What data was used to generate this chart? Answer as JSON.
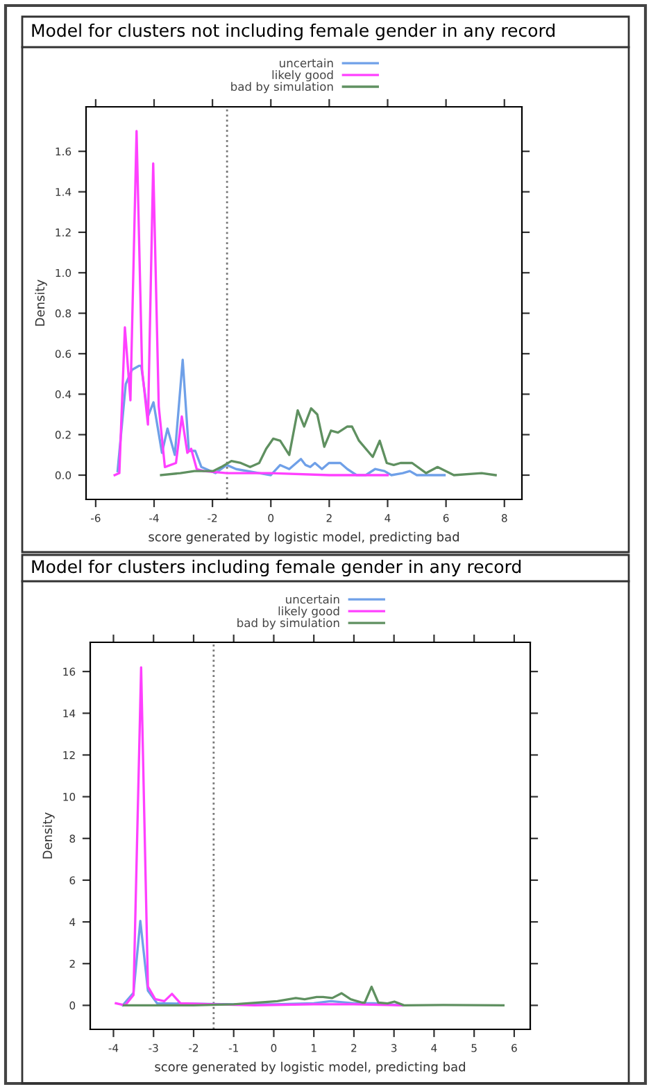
{
  "chart_data": [
    {
      "type": "line",
      "title": "Model for clusters not including female gender in any record",
      "xlabel": "score generated by logistic model, predicting bad",
      "ylabel": "Density",
      "xlim": [
        -6.33,
        8.6
      ],
      "ylim": [
        -0.12,
        1.82
      ],
      "xticks": [
        -6,
        -4,
        -2,
        0,
        2,
        4,
        6,
        8
      ],
      "yticks": [
        {
          "value": 0,
          "label": "0.0"
        },
        0.2,
        0.4,
        0.6,
        0.8,
        {
          "value": 1,
          "label": "1.0"
        },
        1.2,
        1.4,
        1.6
      ],
      "legend": "top",
      "grid": false,
      "line_style": "solid",
      "ref_lines": [
        {
          "axis": "x",
          "value": -1.5,
          "label": null,
          "color": "#777777",
          "line_style": "dotted"
        }
      ],
      "series": [
        {
          "name": "uncertain",
          "color": "#6fa0e8",
          "x": [
            -5.25,
            -4.97,
            -4.76,
            -4.52,
            -4.44,
            -4.21,
            -4.02,
            -3.73,
            -3.54,
            -3.29,
            -3.02,
            -2.81,
            -2.59,
            -2.38,
            -1.9,
            -1.51,
            -1.19,
            -0.4,
            0,
            0.32,
            0.63,
            1.03,
            1.19,
            1.35,
            1.51,
            1.75,
            1.99,
            2.38,
            2.62,
            2.94,
            3.25,
            3.57,
            3.89,
            4.13,
            4.52,
            4.76,
            5.0,
            5.95
          ],
          "values": [
            0.02,
            0.45,
            0.52,
            0.54,
            0.54,
            0.29,
            0.36,
            0.11,
            0.23,
            0.1,
            0.57,
            0.12,
            0.12,
            0.04,
            0.01,
            0.05,
            0.03,
            0.01,
            0,
            0.05,
            0.03,
            0.08,
            0.05,
            0.04,
            0.06,
            0.03,
            0.06,
            0.06,
            0.03,
            0,
            0,
            0.03,
            0.02,
            0,
            0.01,
            0.02,
            0,
            0
          ]
        },
        {
          "name": "likely good",
          "color": "#ff40ff",
          "x": [
            -5.35,
            -5.19,
            -5.0,
            -4.81,
            -4.6,
            -4.41,
            -4.21,
            -4.03,
            -3.84,
            -3.63,
            -3.25,
            -3.05,
            -2.86,
            -2.73,
            -2.54,
            -2.3,
            -1.5,
            0,
            2.0,
            4.0
          ],
          "values": [
            0,
            0.01,
            0.73,
            0.37,
            1.7,
            0.52,
            0.25,
            1.54,
            0.34,
            0.04,
            0.06,
            0.29,
            0.11,
            0.13,
            0.03,
            0.02,
            0.01,
            0.01,
            0,
            0
          ]
        },
        {
          "name": "bad by simulation",
          "color": "#5f9060",
          "x": [
            -3.76,
            -3.1,
            -2.62,
            -1.98,
            -1.7,
            -1.35,
            -1.03,
            -0.71,
            -0.4,
            -0.16,
            0.08,
            0.32,
            0.63,
            0.92,
            1.14,
            1.38,
            1.59,
            1.83,
            2.06,
            2.3,
            2.62,
            2.78,
            3.02,
            3.49,
            3.73,
            3.97,
            4.21,
            4.44,
            4.84,
            5.32,
            5.71,
            6.27,
            7.22,
            7.7
          ],
          "values": [
            0,
            0.01,
            0.02,
            0.02,
            0.04,
            0.07,
            0.06,
            0.04,
            0.06,
            0.13,
            0.18,
            0.17,
            0.1,
            0.32,
            0.24,
            0.33,
            0.3,
            0.14,
            0.22,
            0.21,
            0.24,
            0.24,
            0.17,
            0.09,
            0.17,
            0.06,
            0.05,
            0.06,
            0.06,
            0.01,
            0.04,
            0,
            0.01,
            0
          ]
        }
      ]
    },
    {
      "type": "line",
      "title": "Model for clusters including female gender in any record",
      "xlabel": "score generated by logistic model, predicting bad",
      "ylabel": "Density",
      "xlim": [
        -4.58,
        6.4
      ],
      "ylim": [
        -1.15,
        17.4
      ],
      "xticks": [
        -4,
        -3,
        -2,
        -1,
        0,
        1,
        2,
        3,
        4,
        5,
        6
      ],
      "yticks": [
        0,
        2,
        4,
        6,
        8,
        10,
        12,
        14,
        16
      ],
      "legend": "top",
      "grid": false,
      "line_style": "solid",
      "ref_lines": [
        {
          "axis": "x",
          "value": -1.5,
          "label": null,
          "color": "#777777",
          "line_style": "dotted"
        }
      ],
      "series": [
        {
          "name": "uncertain",
          "color": "#6fa0e8",
          "x": [
            -3.77,
            -3.5,
            -3.33,
            -3.14,
            -2.91,
            -1.0,
            0,
            1.0,
            1.42,
            2.0,
            2.5,
            3.2
          ],
          "values": [
            0,
            0.6,
            4.05,
            0.7,
            0.1,
            0.05,
            0.05,
            0.1,
            0.2,
            0.1,
            0.1,
            0
          ]
        },
        {
          "name": "likely good",
          "color": "#ff40ff",
          "x": [
            -3.94,
            -3.71,
            -3.5,
            -3.31,
            -3.14,
            -2.96,
            -2.73,
            -2.54,
            -2.33,
            -1.5,
            -0.48,
            1.0,
            2.0,
            3.2
          ],
          "values": [
            0.1,
            0,
            0.5,
            16.2,
            0.9,
            0.3,
            0.2,
            0.55,
            0.1,
            0.05,
            0,
            0.05,
            0.05,
            0
          ]
        },
        {
          "name": "bad by simulation",
          "color": "#5f9060",
          "x": [
            -3.74,
            -2.0,
            -1.0,
            0.09,
            0.55,
            0.77,
            1.07,
            1.23,
            1.46,
            1.69,
            1.92,
            2.21,
            2.27,
            2.44,
            2.61,
            2.84,
            3.01,
            3.25,
            4.23,
            5.73
          ],
          "values": [
            0,
            0,
            0.05,
            0.2,
            0.35,
            0.29,
            0.4,
            0.4,
            0.35,
            0.58,
            0.29,
            0.13,
            0.13,
            0.89,
            0.13,
            0.09,
            0.18,
            0,
            0.02,
            0
          ]
        }
      ]
    }
  ]
}
